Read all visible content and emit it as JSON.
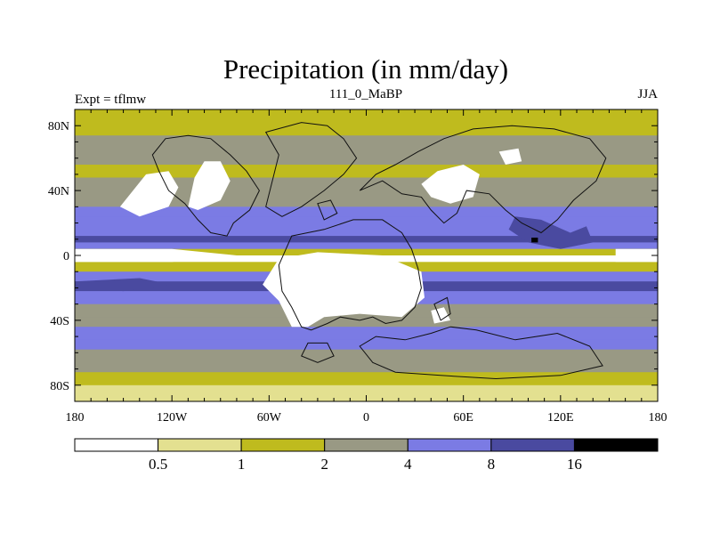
{
  "chart_data": {
    "type": "heatmap",
    "title": "Precipitation (in mm/day)",
    "left_string": "Expt = tflmw",
    "center_string": "111_0_MaBP",
    "right_string": "JJA",
    "x_range": [
      -180,
      180
    ],
    "y_range": [
      -90,
      90
    ],
    "x_ticks": [
      {
        "value": -180,
        "label": "180"
      },
      {
        "value": -120,
        "label": "120W"
      },
      {
        "value": -60,
        "label": "60W"
      },
      {
        "value": 0,
        "label": "0"
      },
      {
        "value": 60,
        "label": "60E"
      },
      {
        "value": 120,
        "label": "120E"
      },
      {
        "value": 180,
        "label": "180"
      }
    ],
    "y_ticks": [
      {
        "value": 80,
        "label": "80N"
      },
      {
        "value": 40,
        "label": "40N"
      },
      {
        "value": 0,
        "label": "0"
      },
      {
        "value": -40,
        "label": "40S"
      },
      {
        "value": -80,
        "label": "80S"
      }
    ],
    "levels": [
      "0.5",
      "1",
      "2",
      "4",
      "8",
      "16"
    ],
    "colors": [
      "#ffffff",
      "#e3e090",
      "#bfbb1e",
      "#999984",
      "#7b7be4",
      "#4a4aa0",
      "#000000"
    ],
    "zonal_profile": [
      {
        "lat": 90,
        "level": 2
      },
      {
        "lat": 82,
        "level": 2
      },
      {
        "lat": 74,
        "level": 3
      },
      {
        "lat": 64,
        "level": 3
      },
      {
        "lat": 56,
        "level": 2
      },
      {
        "lat": 48,
        "level": 3
      },
      {
        "lat": 36,
        "level": 3
      },
      {
        "lat": 30,
        "level": 4
      },
      {
        "lat": 24,
        "level": 4
      },
      {
        "lat": 18,
        "level": 4
      },
      {
        "lat": 12,
        "level": 5
      },
      {
        "lat": 8,
        "level": 4
      },
      {
        "lat": 4,
        "level": 2
      },
      {
        "lat": 0,
        "level": 0
      },
      {
        "lat": -4,
        "level": 2
      },
      {
        "lat": -10,
        "level": 4
      },
      {
        "lat": -16,
        "level": 5
      },
      {
        "lat": -22,
        "level": 4
      },
      {
        "lat": -30,
        "level": 3
      },
      {
        "lat": -38,
        "level": 3
      },
      {
        "lat": -44,
        "level": 4
      },
      {
        "lat": -52,
        "level": 4
      },
      {
        "lat": -58,
        "level": 3
      },
      {
        "lat": -66,
        "level": 3
      },
      {
        "lat": -72,
        "level": 2
      },
      {
        "lat": -80,
        "level": 1
      },
      {
        "lat": -90,
        "level": 2
      }
    ],
    "regions": [
      {
        "name": "north-america-dry",
        "level": 0,
        "polygon": [
          [
            -106,
            48
          ],
          [
            -100,
            58
          ],
          [
            -90,
            58
          ],
          [
            -84,
            46
          ],
          [
            -90,
            34
          ],
          [
            -104,
            28
          ],
          [
            -110,
            30
          ]
        ]
      },
      {
        "name": "north-pacific-dry",
        "level": 0,
        "polygon": [
          [
            -152,
            30
          ],
          [
            -136,
            50
          ],
          [
            -122,
            52
          ],
          [
            -116,
            42
          ],
          [
            -122,
            30
          ],
          [
            -140,
            24
          ]
        ]
      },
      {
        "name": "europe-dry",
        "level": 0,
        "polygon": [
          [
            34,
            44
          ],
          [
            44,
            52
          ],
          [
            60,
            56
          ],
          [
            70,
            50
          ],
          [
            66,
            36
          ],
          [
            52,
            32
          ],
          [
            40,
            36
          ]
        ]
      },
      {
        "name": "east-asia-dry",
        "level": 0,
        "polygon": [
          [
            82,
            64
          ],
          [
            94,
            66
          ],
          [
            96,
            58
          ],
          [
            86,
            56
          ]
        ]
      },
      {
        "name": "equatorial-east-pacific-dry",
        "level": 0,
        "polygon": [
          [
            -180,
            4
          ],
          [
            -120,
            4
          ],
          [
            -80,
            0
          ],
          [
            -120,
            -4
          ],
          [
            -180,
            -4
          ]
        ]
      },
      {
        "name": "equatorial-west-pacific-dry",
        "level": 0,
        "polygon": [
          [
            154,
            4
          ],
          [
            180,
            4
          ],
          [
            180,
            -4
          ],
          [
            154,
            -4
          ]
        ]
      },
      {
        "name": "gondwana-interior-dry",
        "level": 0,
        "polygon": [
          [
            -54,
            -2
          ],
          [
            -30,
            2
          ],
          [
            10,
            0
          ],
          [
            34,
            -10
          ],
          [
            36,
            -26
          ],
          [
            22,
            -38
          ],
          [
            -4,
            -36
          ],
          [
            -26,
            -38
          ],
          [
            -36,
            -44
          ],
          [
            -46,
            -44
          ],
          [
            -54,
            -28
          ],
          [
            -64,
            -18
          ]
        ]
      },
      {
        "name": "south-africa-dry",
        "level": 0,
        "polygon": [
          [
            40,
            -34
          ],
          [
            48,
            -32
          ],
          [
            52,
            -40
          ],
          [
            42,
            -42
          ]
        ]
      },
      {
        "name": "asia-monsoon-wet",
        "level": 5,
        "polygon": [
          [
            92,
            24
          ],
          [
            108,
            22
          ],
          [
            126,
            14
          ],
          [
            136,
            18
          ],
          [
            140,
            8
          ],
          [
            120,
            4
          ],
          [
            100,
            8
          ],
          [
            88,
            16
          ]
        ]
      },
      {
        "name": "asia-monsoon-core",
        "level": 6,
        "polygon": [
          [
            102,
            11
          ],
          [
            106,
            11
          ],
          [
            106,
            8
          ],
          [
            102,
            8
          ]
        ]
      },
      {
        "name": "south-midlat-storm",
        "level": 5,
        "polygon": [
          [
            -180,
            -16
          ],
          [
            -140,
            -14
          ],
          [
            -120,
            -18
          ],
          [
            -150,
            -22
          ],
          [
            -180,
            -20
          ]
        ]
      }
    ],
    "coastlines": [
      [
        [
          -110,
          74
        ],
        [
          -96,
          72
        ],
        [
          -84,
          62
        ],
        [
          -74,
          52
        ],
        [
          -66,
          40
        ],
        [
          -72,
          28
        ],
        [
          -82,
          20
        ],
        [
          -86,
          12
        ],
        [
          -96,
          14
        ],
        [
          -104,
          22
        ],
        [
          -112,
          32
        ],
        [
          -122,
          40
        ],
        [
          -128,
          52
        ],
        [
          -132,
          62
        ],
        [
          -124,
          72
        ]
      ],
      [
        [
          -62,
          76
        ],
        [
          -40,
          82
        ],
        [
          -24,
          80
        ],
        [
          -14,
          72
        ],
        [
          -6,
          60
        ],
        [
          -14,
          50
        ],
        [
          -26,
          40
        ],
        [
          -40,
          30
        ],
        [
          -52,
          24
        ],
        [
          -62,
          30
        ],
        [
          -58,
          46
        ],
        [
          -54,
          62
        ]
      ],
      [
        [
          -46,
          12
        ],
        [
          -26,
          16
        ],
        [
          -8,
          22
        ],
        [
          10,
          22
        ],
        [
          22,
          14
        ],
        [
          28,
          4
        ],
        [
          32,
          -8
        ],
        [
          34,
          -20
        ],
        [
          30,
          -32
        ],
        [
          22,
          -40
        ],
        [
          12,
          -42
        ],
        [
          4,
          -38
        ],
        [
          -4,
          -40
        ],
        [
          -16,
          -38
        ],
        [
          -24,
          -42
        ],
        [
          -34,
          -46
        ],
        [
          -40,
          -44
        ],
        [
          -46,
          -32
        ],
        [
          -52,
          -22
        ],
        [
          -54,
          -6
        ]
      ],
      [
        [
          -4,
          40
        ],
        [
          10,
          46
        ],
        [
          22,
          38
        ],
        [
          34,
          36
        ],
        [
          40,
          28
        ],
        [
          48,
          20
        ],
        [
          56,
          26
        ],
        [
          62,
          40
        ],
        [
          76,
          38
        ],
        [
          86,
          28
        ],
        [
          96,
          20
        ],
        [
          108,
          14
        ],
        [
          118,
          22
        ],
        [
          128,
          34
        ],
        [
          142,
          46
        ],
        [
          148,
          60
        ],
        [
          138,
          72
        ],
        [
          116,
          78
        ],
        [
          90,
          80
        ],
        [
          66,
          78
        ],
        [
          48,
          72
        ],
        [
          32,
          64
        ],
        [
          18,
          56
        ],
        [
          6,
          50
        ]
      ],
      [
        [
          40,
          -48
        ],
        [
          52,
          -44
        ],
        [
          68,
          -46
        ],
        [
          92,
          -52
        ],
        [
          118,
          -48
        ],
        [
          138,
          -56
        ],
        [
          146,
          -68
        ],
        [
          120,
          -74
        ],
        [
          80,
          -76
        ],
        [
          46,
          -74
        ],
        [
          18,
          -72
        ],
        [
          4,
          -66
        ],
        [
          -4,
          -56
        ],
        [
          6,
          -50
        ],
        [
          24,
          -52
        ]
      ],
      [
        [
          42,
          -30
        ],
        [
          50,
          -26
        ],
        [
          52,
          -36
        ],
        [
          46,
          -40
        ]
      ],
      [
        [
          -36,
          -54
        ],
        [
          -24,
          -54
        ],
        [
          -20,
          -62
        ],
        [
          -30,
          -66
        ],
        [
          -40,
          -62
        ]
      ],
      [
        [
          -30,
          32
        ],
        [
          -22,
          34
        ],
        [
          -18,
          26
        ],
        [
          -26,
          22
        ]
      ]
    ]
  }
}
